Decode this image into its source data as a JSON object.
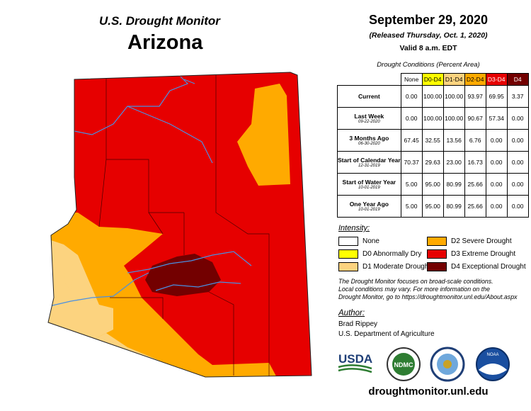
{
  "header": {
    "title": "U.S. Drought Monitor",
    "state": "Arizona"
  },
  "date": {
    "title": "September 29, 2020",
    "released": "(Released Thursday, Oct. 1, 2020)",
    "valid": "Valid 8 a.m. EDT"
  },
  "table": {
    "caption": "Drought Conditions (Percent Area)",
    "columns": [
      {
        "label": "None",
        "color": "#ffffff",
        "text": "#000000"
      },
      {
        "label": "D0-D4",
        "color": "#ffff00",
        "text": "#000000"
      },
      {
        "label": "D1-D4",
        "color": "#fcd37f",
        "text": "#000000"
      },
      {
        "label": "D2-D4",
        "color": "#ffaa00",
        "text": "#000000"
      },
      {
        "label": "D3-D4",
        "color": "#e60000",
        "text": "#ffffff"
      },
      {
        "label": "D4",
        "color": "#730000",
        "text": "#ffffff"
      }
    ],
    "rows": [
      {
        "label": "Current",
        "values": [
          "0.00",
          "100.00",
          "100.00",
          "93.97",
          "69.95",
          "3.37"
        ]
      },
      {
        "label": "Last Week",
        "date": "09-22-2020",
        "values": [
          "0.00",
          "100.00",
          "100.00",
          "90.67",
          "57.34",
          "0.00"
        ]
      },
      {
        "label": "3 Months Ago",
        "date": "06-30-2020",
        "values": [
          "67.45",
          "32.55",
          "13.56",
          "6.76",
          "0.00",
          "0.00"
        ]
      },
      {
        "label": "Start of Calendar Year",
        "date": "12-31-2019",
        "values": [
          "70.37",
          "29.63",
          "23.00",
          "16.73",
          "0.00",
          "0.00"
        ]
      },
      {
        "label": "Start of Water Year",
        "date": "10-01-2019",
        "values": [
          "5.00",
          "95.00",
          "80.99",
          "25.66",
          "0.00",
          "0.00"
        ]
      },
      {
        "label": "One Year Ago",
        "date": "10-01-2019",
        "values": [
          "5.00",
          "95.00",
          "80.99",
          "25.66",
          "0.00",
          "0.00"
        ]
      }
    ]
  },
  "legend": {
    "title": "Intensity:",
    "items": [
      {
        "label": "None",
        "color": "#ffffff"
      },
      {
        "label": "D0 Abnormally Dry",
        "color": "#ffff00"
      },
      {
        "label": "D1 Moderate Drought",
        "color": "#fcd37f"
      },
      {
        "label": "D2 Severe Drought",
        "color": "#ffaa00"
      },
      {
        "label": "D3 Extreme Drought",
        "color": "#e60000"
      },
      {
        "label": "D4 Exceptional Drought",
        "color": "#730000"
      }
    ]
  },
  "note": [
    "The Drought Monitor focuses on broad-scale conditions.",
    "Local conditions may vary. For more information on the",
    "Drought Monitor, go to https://droughtmonitor.unl.edu/About.aspx"
  ],
  "author": {
    "title": "Author:",
    "name": "Brad Rippey",
    "org": "U.S. Department of Agriculture"
  },
  "logos": {
    "usda": "USDA",
    "ndmc": "NDMC",
    "noaa": "NOAA"
  },
  "url": "droughtmonitor.unl.edu"
}
